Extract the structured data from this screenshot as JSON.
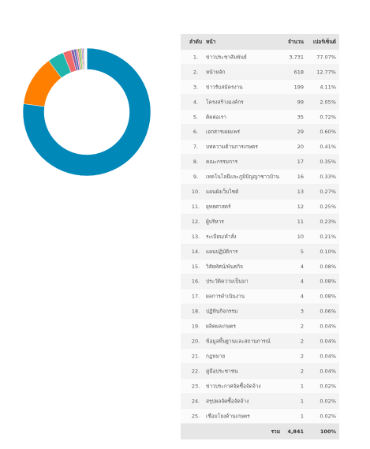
{
  "chart_data": {
    "type": "pie",
    "donut": true,
    "categories": [
      "ข่าวประชาสัมพันธ์",
      "หน้าหลัก",
      "ข่าวรับสมัครงาน",
      "โครงสร้างองค์กร",
      "ติดต่อเรา",
      "เอกสารเผยแพร่",
      "บทความด้านการเกษตร",
      "คณะกรรมการ",
      "เทคโนโลยีและภูมิปัญญาชาวบ้าน",
      "แผนผังเว็บไซต์",
      "ยุทธศาสตร์",
      "ผู้บริหาร",
      "ระเบียบ/คำสั่ง",
      "แผนปฏิบัติการ",
      "วิสัยทัศน์/พันธกิจ",
      "ประวัติความเป็นมา",
      "ผลการดำเนินงาน",
      "ปฏิทินกิจกรรม",
      "ผลิตผลเกษตร",
      "ข้อมูลพื้นฐานและสถานการณ์",
      "กฎหมาย",
      "คู่มือประชาชน",
      "ข่าวประกาศจัดซื้อจัดจ้าง",
      "สรุปผลจัดซื้อจัดจ้าง",
      "เชื่อมโยงด้านเกษตร"
    ],
    "values": [
      3731,
      618,
      199,
      99,
      35,
      29,
      20,
      17,
      16,
      13,
      12,
      11,
      10,
      5,
      4,
      4,
      4,
      3,
      2,
      2,
      2,
      2,
      1,
      1,
      1
    ],
    "value_labels": [
      "3,731",
      "618",
      "199",
      "99",
      "35",
      "29",
      "20",
      "17",
      "16",
      "13",
      "12",
      "11",
      "10",
      "5",
      "4",
      "4",
      "4",
      "3",
      "2",
      "2",
      "2",
      "2",
      "1",
      "1",
      "1"
    ],
    "colors": [
      "#0088b9",
      "#ff8000",
      "#1fb5ad",
      "#f06a6a",
      "#8e5ea2",
      "#5b6fb6",
      "#e87fb1",
      "#b0a248",
      "#3cba54",
      "#e2b33c",
      "#7a6bd1",
      "#c45850",
      "#58b9e6",
      "#9a9a9a",
      "#f4a582",
      "#a6d96a",
      "#d4a6e0",
      "#66c2a5",
      "#fdd49e",
      "#b3cde3",
      "#ccebc5",
      "#decbe4",
      "#fed9a6",
      "#e5d8bd",
      "#fddaec"
    ]
  },
  "table": {
    "header": {
      "rank": "ลำดับ",
      "page": "หน้า",
      "count": "จำนวน",
      "percent": "เปอร์เซ็นต์"
    },
    "rows": [
      {
        "rank": "1.",
        "percent": "77.07%"
      },
      {
        "rank": "2.",
        "percent": "12.77%"
      },
      {
        "rank": "3.",
        "percent": "4.11%"
      },
      {
        "rank": "4.",
        "percent": "2.05%"
      },
      {
        "rank": "5.",
        "percent": "0.72%"
      },
      {
        "rank": "6.",
        "percent": "0.60%"
      },
      {
        "rank": "7.",
        "percent": "0.41%"
      },
      {
        "rank": "8.",
        "percent": "0.35%"
      },
      {
        "rank": "9.",
        "percent": "0.33%"
      },
      {
        "rank": "10.",
        "percent": "0.27%"
      },
      {
        "rank": "11.",
        "percent": "0.25%"
      },
      {
        "rank": "12.",
        "percent": "0.23%"
      },
      {
        "rank": "13.",
        "percent": "0.21%"
      },
      {
        "rank": "14.",
        "percent": "0.10%"
      },
      {
        "rank": "15.",
        "percent": "0.08%"
      },
      {
        "rank": "16.",
        "percent": "0.08%"
      },
      {
        "rank": "17.",
        "percent": "0.08%"
      },
      {
        "rank": "18.",
        "percent": "0.06%"
      },
      {
        "rank": "19.",
        "percent": "0.04%"
      },
      {
        "rank": "20.",
        "percent": "0.04%"
      },
      {
        "rank": "21.",
        "percent": "0.04%"
      },
      {
        "rank": "22.",
        "percent": "0.04%"
      },
      {
        "rank": "23.",
        "percent": "0.02%"
      },
      {
        "rank": "24.",
        "percent": "0.02%"
      },
      {
        "rank": "25.",
        "percent": "0.02%"
      }
    ],
    "total": {
      "label": "รวม",
      "count": "4,841",
      "percent": "100%"
    }
  }
}
